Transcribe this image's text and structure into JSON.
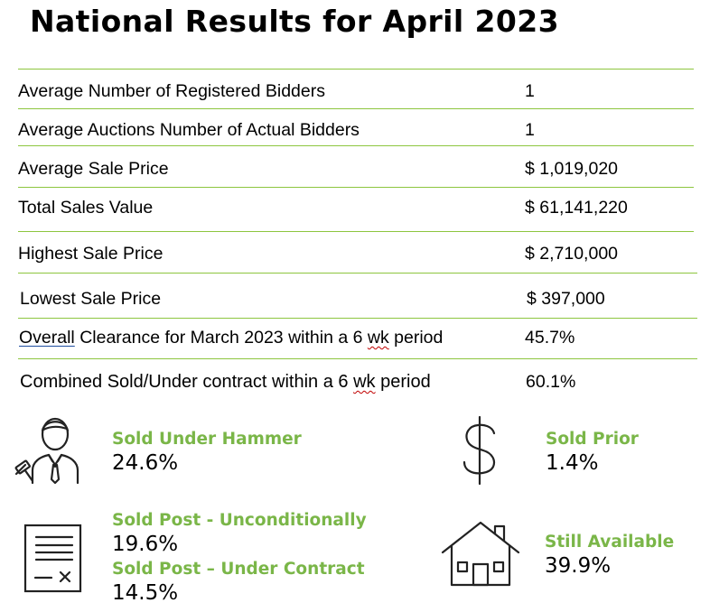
{
  "title": "National Results for April 2023",
  "rows": [
    {
      "label": "Average Number of Registered Bidders",
      "value": "1"
    },
    {
      "label": "Average Auctions Number of Actual Bidders",
      "value": "1"
    },
    {
      "label": "Average Sale Price",
      "value": "$ 1,019,020"
    },
    {
      "label": "Total Sales Value",
      "value": "$ 61,141,220"
    },
    {
      "label": "Highest Sale Price",
      "value": "$ 2,710,000"
    },
    {
      "label": "Lowest Sale Price",
      "value": "$ 397,000"
    },
    {
      "label_pre": "Overall",
      "label_mid": " Clearance for March 2023 within a 6 ",
      "label_sq": "wk",
      "label_post": " period",
      "value": "45.7%"
    },
    {
      "label_pre": "Combined Sold/Under contract within a 6 ",
      "label_sq": "wk",
      "label_post": " period",
      "value": "60.1%"
    }
  ],
  "stats": {
    "sold_under_hammer": {
      "label": "Sold Under Hammer",
      "value": "24.6%"
    },
    "sold_prior": {
      "label": "Sold Prior",
      "value": "1.4%"
    },
    "sold_post_unconditionally": {
      "label": "Sold Post - Unconditionally",
      "value": "19.6%"
    },
    "sold_post_under_contract": {
      "label": "Sold Post – Under Contract",
      "value": "14.5%"
    },
    "still_available": {
      "label": "Still Available",
      "value": "39.9%"
    }
  },
  "icons": {
    "auctioneer": "auctioneer-gavel-icon",
    "dollar": "dollar-sign-icon",
    "contract": "contract-document-icon",
    "house": "house-icon"
  },
  "colors": {
    "accent": "#7ab648",
    "rule": "#8dc63f"
  }
}
